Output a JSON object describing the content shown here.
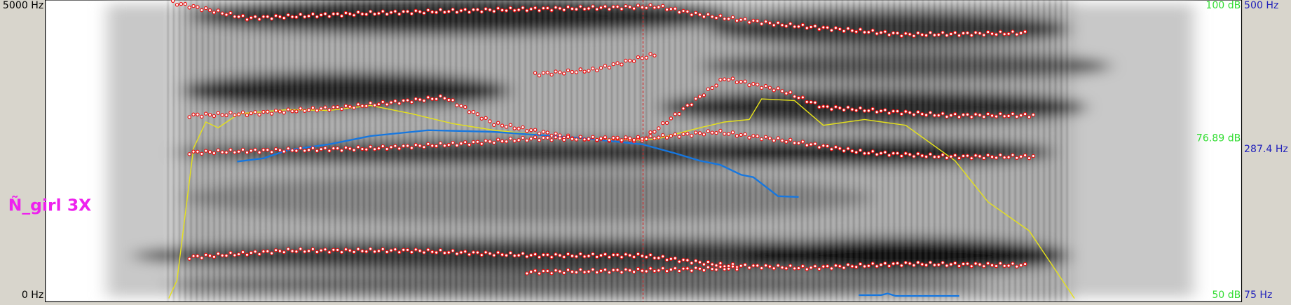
{
  "left_axis": {
    "top": "5000 Hz",
    "bottom": "0 Hz"
  },
  "right_axis": {
    "intensity_top": "100 dB",
    "pitch_top": "500 Hz",
    "intensity_cursor": "76.89 dB",
    "pitch_cursor": "287.4 Hz",
    "intensity_bottom": "50 dB",
    "pitch_bottom": "75 Hz"
  },
  "annotation": "Ñ_girl 3X"
}
